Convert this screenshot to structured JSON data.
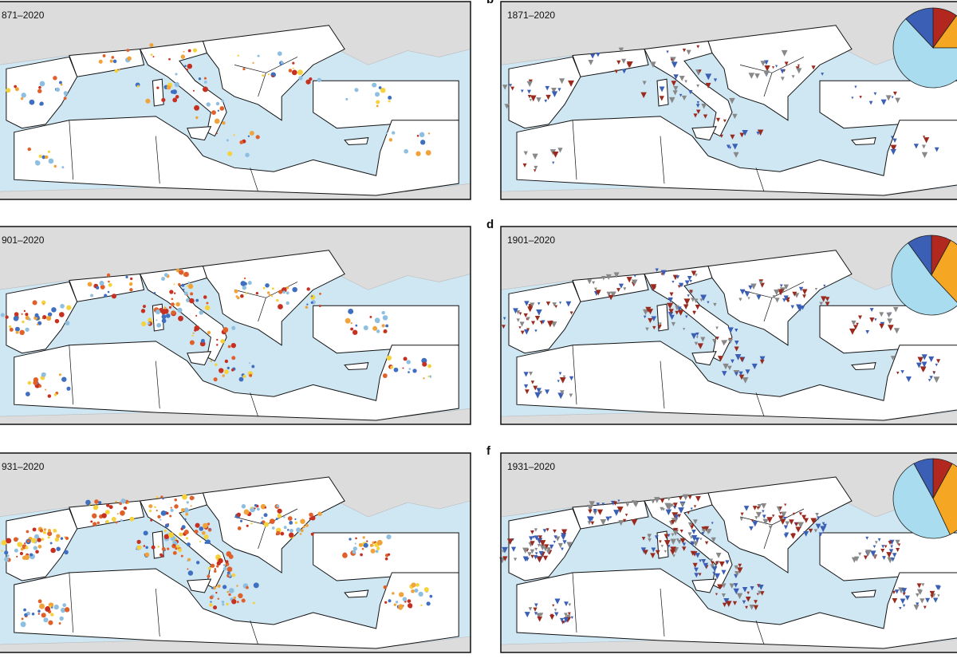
{
  "panels": [
    {
      "label": "871–2020"
    },
    {
      "letter": "b",
      "label": "1871–2020",
      "pie": {
        "values": [
          10,
          15,
          63,
          12
        ],
        "colors": [
          "#b2281e",
          "#f5a623",
          "#a9dcef",
          "#3b5fb5"
        ]
      }
    },
    {
      "label": "901–2020"
    },
    {
      "letter": "d",
      "label": "1901–2020",
      "pie": {
        "values": [
          8,
          30,
          52,
          10
        ],
        "colors": [
          "#b2281e",
          "#f5a623",
          "#a9dcef",
          "#3b5fb5"
        ]
      }
    },
    {
      "label": "931–2020"
    },
    {
      "letter": "f",
      "label": "1931–2020",
      "pie": {
        "values": [
          8,
          35,
          49,
          8
        ],
        "colors": [
          "#b2281e",
          "#f5a623",
          "#a9dcef",
          "#3b5fb5"
        ]
      }
    }
  ]
}
